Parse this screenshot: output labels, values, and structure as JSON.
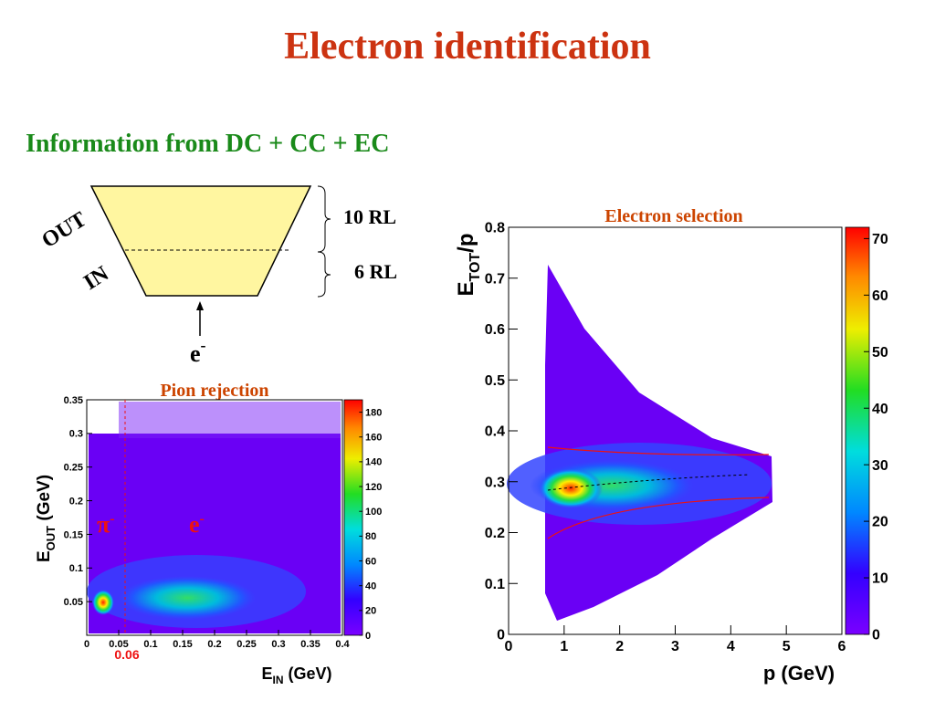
{
  "title": "Electron identification",
  "subtitle": "Information from DC + CC + EC",
  "diagram": {
    "out_label": "OUT",
    "in_label": "IN",
    "out_thickness": "10 RL",
    "in_thickness": "6 RL",
    "particle": "e",
    "particle_charge": "-"
  },
  "chart_data": [
    {
      "type": "heatmap",
      "title": "Pion rejection",
      "xlabel": {
        "symbol": "E",
        "sub": "IN",
        "unit": " (GeV)"
      },
      "ylabel": {
        "symbol": "E",
        "sub": "OUT",
        "unit": " (GeV)"
      },
      "xlim": [
        0,
        0.4
      ],
      "xticks": [
        0,
        0.05,
        0.1,
        0.15,
        0.2,
        0.25,
        0.3,
        0.35,
        0.4
      ],
      "ylim": [
        0,
        0.35
      ],
      "yticks": [
        0.05,
        0.1,
        0.15,
        0.2,
        0.25,
        0.3,
        0.35
      ],
      "zlim": [
        0,
        190
      ],
      "zticks": [
        0,
        20,
        40,
        60,
        80,
        100,
        120,
        140,
        160,
        180
      ],
      "cut": 0.06,
      "annotations": [
        {
          "symbol": "π",
          "charge": "-"
        },
        {
          "symbol": "e",
          "charge": "-"
        }
      ]
    },
    {
      "type": "heatmap",
      "title": "Electron selection",
      "xlabel": {
        "text": "p (GeV)"
      },
      "ylabel": {
        "symbol": "E",
        "sub": "TOT",
        "unit": "/p"
      },
      "xlim": [
        0,
        6
      ],
      "xticks": [
        0,
        1,
        2,
        3,
        4,
        5,
        6
      ],
      "ylim": [
        0,
        0.8
      ],
      "yticks": [
        0,
        0.1,
        0.2,
        0.3,
        0.4,
        0.5,
        0.6,
        0.7,
        0.8
      ],
      "zlim": [
        0,
        72
      ],
      "zticks": [
        0,
        10,
        20,
        30,
        40,
        50,
        60,
        70
      ]
    }
  ]
}
